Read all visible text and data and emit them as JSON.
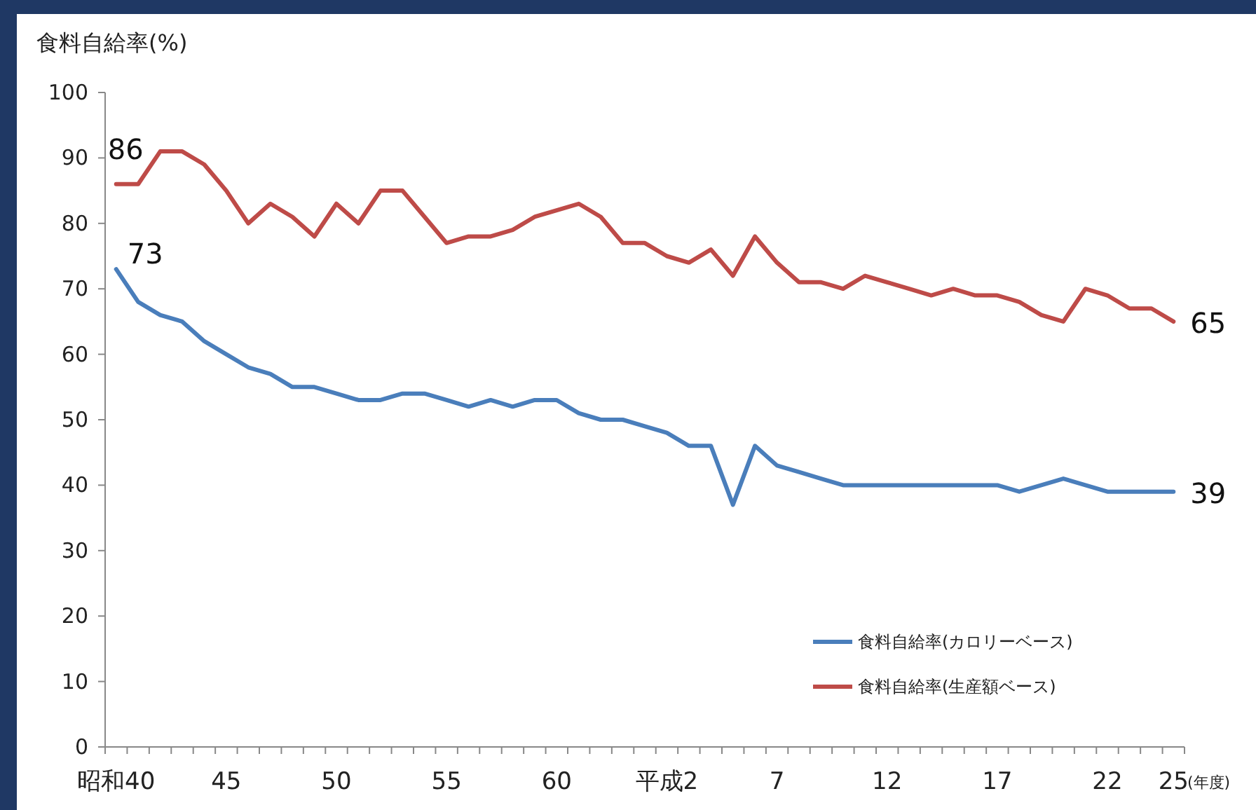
{
  "chart_data": {
    "type": "line",
    "ylabel": "食料自給率(%)",
    "xlabel": "(年度)",
    "categories": [
      "昭和40",
      null,
      null,
      null,
      null,
      "45",
      null,
      null,
      null,
      null,
      "50",
      null,
      null,
      null,
      null,
      "55",
      null,
      null,
      null,
      null,
      "60",
      null,
      null,
      null,
      null,
      "平成2",
      null,
      null,
      null,
      null,
      "7",
      null,
      null,
      null,
      null,
      "12",
      null,
      null,
      null,
      null,
      "17",
      null,
      null,
      null,
      null,
      "22",
      null,
      null,
      "25"
    ],
    "ylim": [
      0,
      100
    ],
    "yticks": [
      0,
      10,
      20,
      30,
      40,
      50,
      60,
      70,
      80,
      90,
      100
    ],
    "grid": false,
    "legend": "bottom right",
    "marker": "none",
    "line_style": "solid",
    "series": [
      {
        "name": "食料自給率(カロリーベース)",
        "color": "#4a7ebb",
        "values": [
          73,
          68,
          66,
          65,
          62,
          60,
          58,
          57,
          55,
          55,
          54,
          53,
          53,
          54,
          54,
          53,
          52,
          53,
          52,
          53,
          53,
          51,
          50,
          50,
          49,
          48,
          46,
          46,
          37,
          46,
          43,
          42,
          41,
          40,
          40,
          40,
          40,
          40,
          40,
          40,
          40,
          39,
          40,
          41,
          40,
          39,
          39,
          39,
          39
        ],
        "value_labels": [
          "73",
          null,
          null,
          null,
          null,
          null,
          null,
          null,
          null,
          null,
          null,
          null,
          null,
          null,
          null,
          null,
          null,
          null,
          null,
          null,
          null,
          null,
          null,
          null,
          null,
          null,
          null,
          null,
          null,
          null,
          null,
          null,
          null,
          null,
          null,
          null,
          null,
          null,
          null,
          null,
          null,
          null,
          null,
          null,
          null,
          null,
          null,
          null,
          "39"
        ]
      },
      {
        "name": "食料自給率(生産額ベース)",
        "color": "#be4b48",
        "values": [
          86,
          86,
          91,
          91,
          89,
          85,
          80,
          83,
          81,
          78,
          83,
          80,
          85,
          85,
          81,
          77,
          78,
          78,
          79,
          81,
          82,
          83,
          81,
          77,
          77,
          75,
          74,
          76,
          72,
          78,
          74,
          71,
          71,
          70,
          72,
          71,
          70,
          69,
          70,
          69,
          69,
          68,
          66,
          65,
          70,
          69,
          67,
          67,
          65
        ],
        "value_labels": [
          "86",
          null,
          null,
          null,
          null,
          null,
          null,
          null,
          null,
          null,
          null,
          null,
          null,
          null,
          null,
          null,
          null,
          null,
          null,
          null,
          null,
          null,
          null,
          null,
          null,
          null,
          null,
          null,
          null,
          null,
          null,
          null,
          null,
          null,
          null,
          null,
          null,
          null,
          null,
          null,
          null,
          null,
          null,
          null,
          null,
          null,
          null,
          null,
          "65"
        ]
      }
    ]
  }
}
